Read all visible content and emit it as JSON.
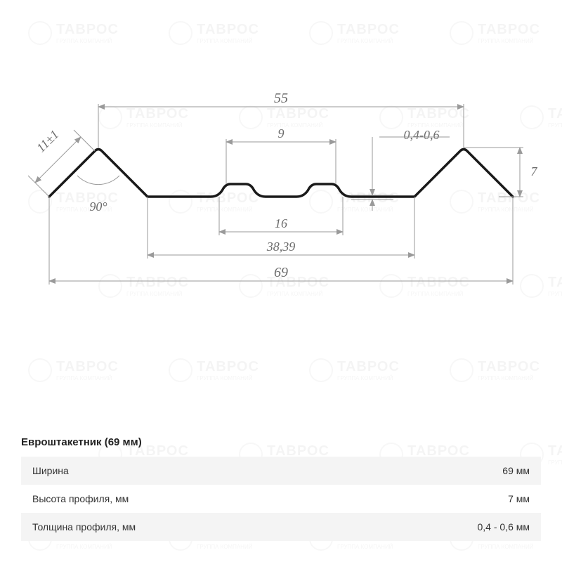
{
  "watermark": {
    "brand": "ТАВРОС",
    "sub": "ГРУППА КОМПАНИЙ"
  },
  "diagram": {
    "type": "technical-profile",
    "stroke_color": "#1a1a1a",
    "stroke_width": 3.5,
    "dim_color": "#9a9a9a",
    "dim_text_color": "#6b6b6b",
    "labels": {
      "top_width": "55",
      "top_mid": "9",
      "thickness": "0,4-0,6",
      "height": "7",
      "side_len": "11±1",
      "angle": "90°",
      "mid_width": "16",
      "inner_width": "38,39",
      "total_width": "69"
    }
  },
  "table": {
    "title": "Евроштакетник (69 мм)",
    "rows": [
      {
        "label": "Ширина",
        "value": "69 мм"
      },
      {
        "label": "Высота профиля, мм",
        "value": "7 мм"
      },
      {
        "label": "Толщина профиля, мм",
        "value": "0,4 - 0,6 мм"
      }
    ]
  }
}
